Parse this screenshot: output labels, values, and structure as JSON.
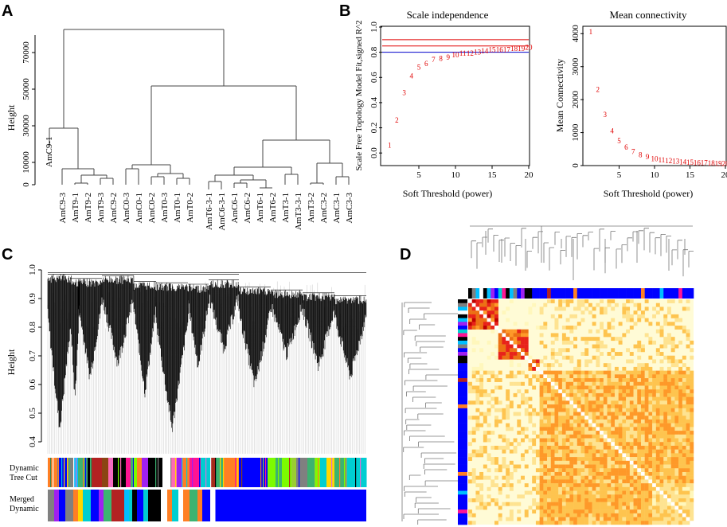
{
  "panels": {
    "a": "A",
    "b": "B",
    "c": "C",
    "d": "D"
  },
  "panel_a": {
    "ylabel": "Height",
    "yticks": [
      "0",
      "10000",
      "30000",
      "50000",
      "70000"
    ],
    "leaves": [
      "AmC9-1",
      "AmC9-3",
      "AmT9-1",
      "AmT9-2",
      "AmT9-3",
      "AmC9-2",
      "AmC0-3",
      "AmC0-1",
      "AmC0-2",
      "AmT0-3",
      "AmT0-1",
      "AmT0-2",
      "AmT6-3-1",
      "AmC6-3-1",
      "AmC6-1",
      "AmC6-2",
      "AmT6-1",
      "AmT6-2",
      "AmT3-1",
      "AmT3-3-1",
      "AmT3-2",
      "AmC3-2",
      "AmC3-1",
      "AmC3-3"
    ]
  },
  "panel_c": {
    "ylabel": "Height",
    "yticks": [
      "0.4",
      "0.5",
      "0.6",
      "0.7",
      "0.8",
      "0.9",
      "1.0"
    ],
    "bar1_label_1": "Dynamic",
    "bar1_label_2": "Tree Cut",
    "bar2_label_1": "Merged",
    "bar2_label_2": "Dynamic"
  },
  "chart_data": [
    {
      "type": "scatter",
      "title": "Scale independence",
      "xlabel": "Soft Threshold (power)",
      "ylabel": "Scale Free Topology Model Fit,signed R^2",
      "xlim": [
        0,
        20
      ],
      "ylim": [
        -0.1,
        1.0
      ],
      "xticks": [
        "5",
        "10",
        "15",
        "20"
      ],
      "yticks": [
        "0.0",
        "0.2",
        "0.4",
        "0.6",
        "0.8",
        "1.0"
      ],
      "x": [
        1,
        2,
        3,
        4,
        5,
        6,
        7,
        8,
        9,
        10,
        11,
        12,
        13,
        14,
        15,
        16,
        17,
        18,
        19,
        20
      ],
      "labels": [
        "1",
        "2",
        "3",
        "4",
        "5",
        "6",
        "7",
        "8",
        "9",
        "10",
        "11",
        "12",
        "13",
        "14",
        "15",
        "16",
        "17",
        "18",
        "19",
        "20"
      ],
      "y": [
        0.06,
        0.26,
        0.48,
        0.61,
        0.68,
        0.71,
        0.74,
        0.75,
        0.76,
        0.78,
        0.79,
        0.79,
        0.8,
        0.81,
        0.82,
        0.82,
        0.82,
        0.83,
        0.83,
        0.84
      ],
      "hlines": [
        {
          "y": 0.9,
          "color": "#e00000"
        },
        {
          "y": 0.85,
          "color": "#e00000"
        },
        {
          "y": 0.8,
          "color": "#0000cc"
        }
      ]
    },
    {
      "type": "scatter",
      "title": "Mean connectivity",
      "xlabel": "Soft Threshold (power)",
      "ylabel": "Mean Connectivity",
      "xlim": [
        0,
        20
      ],
      "ylim": [
        0,
        4200
      ],
      "xticks": [
        "5",
        "10",
        "15",
        "20"
      ],
      "yticks": [
        "0",
        "1000",
        "2000",
        "3000",
        "4000"
      ],
      "x": [
        1,
        2,
        3,
        4,
        5,
        6,
        7,
        8,
        9,
        10,
        11,
        12,
        13,
        14,
        15,
        16,
        17,
        18,
        19,
        20
      ],
      "labels": [
        "1",
        "2",
        "3",
        "4",
        "5",
        "6",
        "7",
        "8",
        "9",
        "10",
        "11",
        "12",
        "13",
        "14",
        "15",
        "16",
        "17",
        "18",
        "19",
        "20"
      ],
      "y": [
        4050,
        2300,
        1550,
        1050,
        750,
        550,
        420,
        330,
        260,
        200,
        170,
        150,
        130,
        110,
        100,
        90,
        80,
        70,
        65,
        60
      ]
    }
  ],
  "colors": {
    "point": "#e00000",
    "hline_red": "#e00000",
    "hline_blue": "#0000cc",
    "module_blue": "#0000ff",
    "heat_bg": "#fffbd6",
    "heat_hot": "#e8221a"
  }
}
